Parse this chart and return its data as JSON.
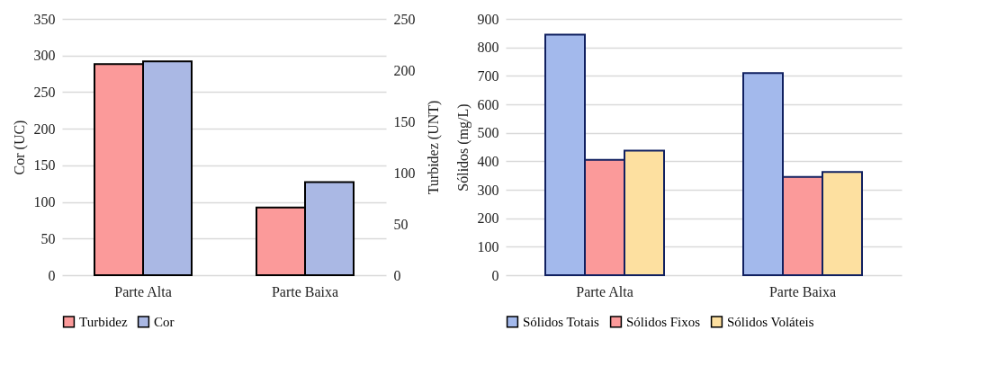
{
  "chart_data": [
    {
      "type": "bar",
      "ylabel": "Cor (UC)",
      "y2label": "Turbidez (UNT)",
      "categories": [
        "Parte Alta",
        "Parte Baixa"
      ],
      "series": [
        {
          "name": "Turbidez",
          "color": "#fb9a9a",
          "values": [
            206,
            66
          ],
          "axis": "y2"
        },
        {
          "name": "Cor",
          "color": "#aab8e4",
          "values": [
            292,
            127
          ]
        }
      ],
      "ylim": [
        0,
        350
      ],
      "yticks": [
        0,
        50,
        100,
        150,
        200,
        250,
        300,
        350
      ],
      "y2lim": [
        0,
        250
      ],
      "y2ticks": [
        0,
        50,
        100,
        150,
        200,
        250
      ],
      "grid": "y",
      "legend": "bottom"
    },
    {
      "type": "bar",
      "ylabel": "Sólidos (mg/L)",
      "categories": [
        "Parte Alta",
        "Parte Baixa"
      ],
      "series": [
        {
          "name": "Sólidos Totais",
          "color": "#a3b9ec",
          "values": [
            845,
            710
          ]
        },
        {
          "name": "Sólidos Fixos",
          "color": "#fb9a9a",
          "values": [
            405,
            345
          ]
        },
        {
          "name": "Sólidos Voláteis",
          "color": "#fde0a0",
          "values": [
            437,
            362
          ]
        }
      ],
      "ylim": [
        0,
        900
      ],
      "yticks": [
        0,
        100,
        200,
        300,
        400,
        500,
        600,
        700,
        800,
        900
      ],
      "grid": "y",
      "legend": "bottom"
    }
  ]
}
